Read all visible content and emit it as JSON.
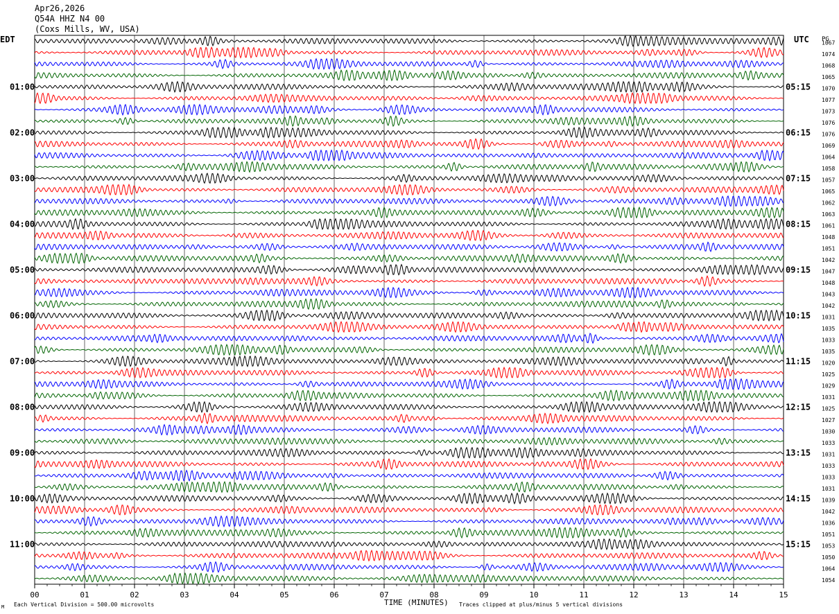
{
  "header": {
    "date": "Apr26,2026",
    "station": "Q54A HHZ N4 00",
    "location": "(Coxs Mills, WV, USA)"
  },
  "left_axis_label": "EDT",
  "right_axis_label": "UTC",
  "pg_label": "PG",
  "footer": {
    "scale_note": "Each Vertical Division =  500.00 microvolts",
    "x_axis_title": "TIME (MINUTES)",
    "clip_note": "Traces clipped at plus/minus 5 vertical divisions",
    "corner_mark": "M"
  },
  "trace_colors": [
    "#000000",
    "#ff0000",
    "#0000ff",
    "#006400"
  ],
  "chart_data": {
    "type": "line",
    "title": "",
    "xlabel": "TIME (MINUTES)",
    "xlim": [
      0,
      15
    ],
    "x_ticks": [
      "00",
      "01",
      "02",
      "03",
      "04",
      "05",
      "06",
      "07",
      "08",
      "09",
      "10",
      "11",
      "12",
      "13",
      "14",
      "15"
    ],
    "trace_count": 48,
    "minutes_per_trace": 15,
    "hour_labels_local": [
      "01:00",
      "02:00",
      "03:00",
      "04:00",
      "05:00",
      "06:00",
      "07:00",
      "08:00",
      "09:00",
      "10:00",
      "11:00"
    ],
    "hour_labels_utc": [
      "05:15",
      "06:15",
      "07:15",
      "08:15",
      "09:15",
      "10:15",
      "11:15",
      "12:15",
      "13:15",
      "14:15",
      "15:15"
    ],
    "trace_values": [
      1067,
      1074,
      1068,
      1065,
      1070,
      1077,
      1073,
      1076,
      1076,
      1069,
      1064,
      1058,
      1057,
      1065,
      1062,
      1063,
      1061,
      1048,
      1051,
      1042,
      1047,
      1048,
      1043,
      1042,
      1031,
      1035,
      1033,
      1035,
      1020,
      1025,
      1029,
      1031,
      1025,
      1027,
      1030,
      1033,
      1031,
      1033,
      1033,
      1031,
      1039,
      1042,
      1036,
      1051,
      1053,
      1050,
      1064,
      1054
    ]
  }
}
